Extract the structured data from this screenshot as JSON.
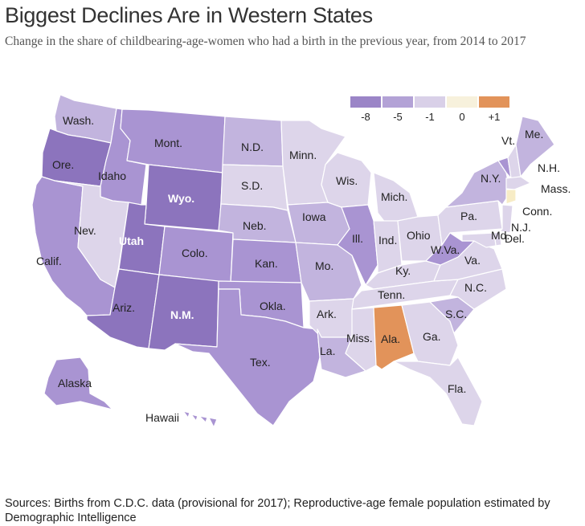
{
  "title": "Biggest Declines Are in Western States",
  "subtitle": "Change in the share of childbearing-age-women who had a birth in the previous year, from 2014 to 2017",
  "sources": "Sources: Births from C.D.C. data (provisional for 2017); Reproductive-age female population estimated by Demographic Intelligence",
  "legend": [
    {
      "label": "-8",
      "color": "#9b85c7"
    },
    {
      "label": "-5",
      "color": "#b3a2d6"
    },
    {
      "label": "-1",
      "color": "#d9d0e8"
    },
    {
      "label": "0",
      "color": "#f7f1dc"
    },
    {
      "label": "+1",
      "color": "#e2935a"
    }
  ],
  "colors": {
    "dark": "#8c74bd",
    "mid": "#a994d2",
    "light": "#c2b4de",
    "pale": "#ddd5ea",
    "neutral": "#f7ecc6",
    "positive": "#e2935a",
    "border": "#ffffff"
  },
  "states": [
    {
      "abbr": "WA",
      "label": "Wash."
    },
    {
      "abbr": "OR",
      "label": "Ore."
    },
    {
      "abbr": "CA",
      "label": "Calif."
    },
    {
      "abbr": "ID",
      "label": "Idaho"
    },
    {
      "abbr": "NV",
      "label": "Nev."
    },
    {
      "abbr": "MT",
      "label": "Mont."
    },
    {
      "abbr": "WY",
      "label": "Wyo."
    },
    {
      "abbr": "UT",
      "label": "Utah"
    },
    {
      "abbr": "AZ",
      "label": "Ariz."
    },
    {
      "abbr": "CO",
      "label": "Colo."
    },
    {
      "abbr": "NM",
      "label": "N.M."
    },
    {
      "abbr": "ND",
      "label": "N.D."
    },
    {
      "abbr": "SD",
      "label": "S.D."
    },
    {
      "abbr": "NE",
      "label": "Neb."
    },
    {
      "abbr": "KS",
      "label": "Kan."
    },
    {
      "abbr": "OK",
      "label": "Okla."
    },
    {
      "abbr": "TX",
      "label": "Tex."
    },
    {
      "abbr": "MN",
      "label": "Minn."
    },
    {
      "abbr": "IA",
      "label": "Iowa"
    },
    {
      "abbr": "MO",
      "label": "Mo."
    },
    {
      "abbr": "AR",
      "label": "Ark."
    },
    {
      "abbr": "LA",
      "label": "La."
    },
    {
      "abbr": "WI",
      "label": "Wis."
    },
    {
      "abbr": "IL",
      "label": "Ill."
    },
    {
      "abbr": "MI",
      "label": "Mich."
    },
    {
      "abbr": "IN",
      "label": "Ind."
    },
    {
      "abbr": "OH",
      "label": "Ohio"
    },
    {
      "abbr": "KY",
      "label": "Ky."
    },
    {
      "abbr": "TN",
      "label": "Tenn."
    },
    {
      "abbr": "MS",
      "label": "Miss."
    },
    {
      "abbr": "AL",
      "label": "Ala."
    },
    {
      "abbr": "GA",
      "label": "Ga."
    },
    {
      "abbr": "FL",
      "label": "Fla."
    },
    {
      "abbr": "SC",
      "label": "S.C."
    },
    {
      "abbr": "NC",
      "label": "N.C."
    },
    {
      "abbr": "VA",
      "label": "Va."
    },
    {
      "abbr": "WV",
      "label": "W.Va."
    },
    {
      "abbr": "PA",
      "label": "Pa."
    },
    {
      "abbr": "NY",
      "label": "N.Y."
    },
    {
      "abbr": "VT",
      "label": "Vt."
    },
    {
      "abbr": "NH",
      "label": "N.H."
    },
    {
      "abbr": "ME",
      "label": "Me."
    },
    {
      "abbr": "MA",
      "label": "Mass."
    },
    {
      "abbr": "CT",
      "label": "Conn."
    },
    {
      "abbr": "NJ",
      "label": "N.J."
    },
    {
      "abbr": "DE",
      "label": "Del."
    },
    {
      "abbr": "MD",
      "label": "Md."
    },
    {
      "abbr": "AK",
      "label": "Alaska"
    },
    {
      "abbr": "HI",
      "label": "Hawaii"
    }
  ]
}
